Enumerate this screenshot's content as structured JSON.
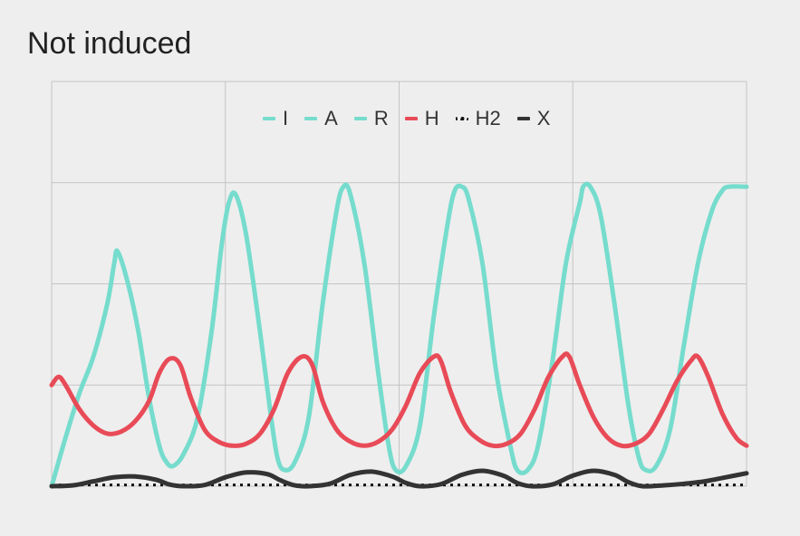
{
  "chart_data": {
    "type": "line",
    "title": "Not induced",
    "xlabel": "",
    "ylabel": "",
    "grid": true,
    "legend_position": "top-center",
    "xlim": [
      0,
      100
    ],
    "ylim": [
      0,
      100
    ],
    "series": [
      {
        "name": "I",
        "color": "#76dccd",
        "style": "solid",
        "points": [
          [
            0,
            0
          ],
          [
            2,
            12
          ],
          [
            4,
            23
          ],
          [
            6,
            32
          ],
          [
            8,
            45
          ],
          [
            9,
            55
          ],
          [
            9.5,
            58
          ],
          [
            11,
            50
          ],
          [
            12.5,
            38
          ],
          [
            14,
            22
          ],
          [
            15.5,
            10
          ],
          [
            16.5,
            6
          ],
          [
            17.5,
            5
          ],
          [
            19,
            8
          ],
          [
            21,
            17
          ],
          [
            23,
            38
          ],
          [
            24.5,
            60
          ],
          [
            25.5,
            70
          ],
          [
            26.5,
            72
          ],
          [
            28,
            62
          ],
          [
            30,
            38
          ],
          [
            31.5,
            18
          ],
          [
            32.5,
            7
          ],
          [
            33.5,
            4
          ],
          [
            35,
            6
          ],
          [
            37,
            17
          ],
          [
            39,
            45
          ],
          [
            41,
            68
          ],
          [
            42,
            74
          ],
          [
            43,
            72
          ],
          [
            45,
            55
          ],
          [
            47,
            28
          ],
          [
            48.5,
            10
          ],
          [
            49.5,
            4
          ],
          [
            51,
            5
          ],
          [
            53,
            15
          ],
          [
            55,
            42
          ],
          [
            57,
            65
          ],
          [
            58,
            73
          ],
          [
            59,
            74
          ],
          [
            60,
            71
          ],
          [
            62,
            55
          ],
          [
            64,
            28
          ],
          [
            66,
            10
          ],
          [
            67,
            4
          ],
          [
            68.5,
            4
          ],
          [
            70,
            10
          ],
          [
            72,
            30
          ],
          [
            74,
            55
          ],
          [
            76,
            70
          ],
          [
            76.5,
            74
          ],
          [
            77.5,
            74
          ],
          [
            79,
            67
          ],
          [
            81,
            45
          ],
          [
            83,
            20
          ],
          [
            84.5,
            7
          ],
          [
            85.5,
            4
          ],
          [
            87,
            5
          ],
          [
            89,
            14
          ],
          [
            91,
            35
          ],
          [
            93,
            55
          ],
          [
            95,
            68
          ],
          [
            96.5,
            73
          ],
          [
            97.5,
            74
          ],
          [
            100,
            74
          ]
        ]
      },
      {
        "name": "A",
        "color": "#76dccd",
        "style": "solid",
        "points": []
      },
      {
        "name": "R",
        "color": "#76dccd",
        "style": "solid",
        "points": []
      },
      {
        "name": "H",
        "color": "#e84b57",
        "style": "solid",
        "points": [
          [
            0,
            25
          ],
          [
            1,
            27
          ],
          [
            2,
            25
          ],
          [
            4,
            19
          ],
          [
            6,
            15
          ],
          [
            8,
            13
          ],
          [
            10,
            13.5
          ],
          [
            12,
            16
          ],
          [
            14,
            21
          ],
          [
            15.5,
            28
          ],
          [
            17,
            31.5
          ],
          [
            18.5,
            30
          ],
          [
            20,
            22
          ],
          [
            22,
            14
          ],
          [
            24,
            11
          ],
          [
            26,
            10
          ],
          [
            28,
            10.5
          ],
          [
            30,
            13
          ],
          [
            32,
            19
          ],
          [
            34,
            28
          ],
          [
            36,
            32
          ],
          [
            37.5,
            30
          ],
          [
            39,
            21
          ],
          [
            41,
            14
          ],
          [
            43,
            11
          ],
          [
            45,
            10
          ],
          [
            47,
            11
          ],
          [
            49,
            14
          ],
          [
            51,
            20
          ],
          [
            53,
            28
          ],
          [
            55,
            32
          ],
          [
            56,
            31
          ],
          [
            57.5,
            23
          ],
          [
            59.5,
            15
          ],
          [
            61.5,
            11.5
          ],
          [
            63.5,
            10
          ],
          [
            65.5,
            10.5
          ],
          [
            67.5,
            13
          ],
          [
            69.5,
            19
          ],
          [
            71.5,
            27
          ],
          [
            73.5,
            32
          ],
          [
            74.5,
            32
          ],
          [
            76,
            25
          ],
          [
            78,
            17
          ],
          [
            80,
            12
          ],
          [
            82,
            10
          ],
          [
            84,
            10.5
          ],
          [
            86,
            13
          ],
          [
            88,
            19
          ],
          [
            90,
            26
          ],
          [
            92,
            31
          ],
          [
            93,
            32
          ],
          [
            94.5,
            27
          ],
          [
            96.5,
            18
          ],
          [
            98.5,
            12
          ],
          [
            100,
            10
          ]
        ]
      },
      {
        "name": "H2",
        "color": "#111111",
        "style": "dotted",
        "points": [
          [
            0,
            0.3
          ],
          [
            100,
            0.3
          ]
        ]
      },
      {
        "name": "X",
        "color": "#333333",
        "style": "solid",
        "points": [
          [
            0,
            0
          ],
          [
            3,
            0.2
          ],
          [
            6,
            1.2
          ],
          [
            9,
            2.2
          ],
          [
            12,
            2.4
          ],
          [
            15,
            1.6
          ],
          [
            17,
            0.4
          ],
          [
            19,
            0
          ],
          [
            22,
            0.3
          ],
          [
            25,
            2.2
          ],
          [
            28,
            3.4
          ],
          [
            31,
            3
          ],
          [
            33,
            1.4
          ],
          [
            35,
            0.2
          ],
          [
            37,
            0
          ],
          [
            40,
            0.6
          ],
          [
            43,
            2.8
          ],
          [
            46,
            3.6
          ],
          [
            49,
            2.4
          ],
          [
            51,
            0.8
          ],
          [
            53,
            0
          ],
          [
            56,
            0.5
          ],
          [
            59,
            2.8
          ],
          [
            62,
            3.8
          ],
          [
            65,
            2.6
          ],
          [
            67,
            0.8
          ],
          [
            69,
            0
          ],
          [
            72,
            0.4
          ],
          [
            75,
            2.6
          ],
          [
            78,
            3.8
          ],
          [
            81,
            2.8
          ],
          [
            83,
            1
          ],
          [
            85,
            0
          ],
          [
            88,
            0.2
          ],
          [
            91,
            0.6
          ],
          [
            94,
            1.2
          ],
          [
            97,
            2.2
          ],
          [
            100,
            3.2
          ]
        ]
      }
    ]
  }
}
